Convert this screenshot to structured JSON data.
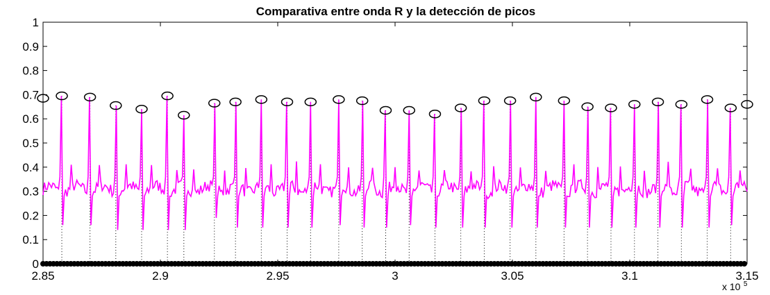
{
  "chart_data": {
    "type": "line",
    "title": "Comparativa entre onda R y la detección de picos",
    "xlabel": "",
    "ylabel": "",
    "x_exponent_label": "x 10",
    "x_exponent_power": "5",
    "xlim": [
      285000,
      315000
    ],
    "ylim": [
      0,
      1
    ],
    "x_ticks": [
      285000,
      290000,
      295000,
      300000,
      305000,
      310000,
      315000
    ],
    "x_tick_labels": [
      "2.85",
      "2.9",
      "2.95",
      "3",
      "3.05",
      "3.1",
      "3.15"
    ],
    "y_ticks": [
      0,
      0.1,
      0.2,
      0.3,
      0.4,
      0.5,
      0.6,
      0.7,
      0.8,
      0.9,
      1
    ],
    "y_tick_labels": [
      "0",
      "0.1",
      "0.2",
      "0.3",
      "0.4",
      "0.5",
      "0.6",
      "0.7",
      "0.8",
      "0.9",
      "1"
    ],
    "grid": false,
    "baseline": 0.31,
    "series": [
      {
        "color": "#ff00ff",
        "style": "signal",
        "peaks_x": [
          285800,
          287000,
          288100,
          289200,
          290300,
          291000,
          292300,
          293200,
          294300,
          295400,
          296400,
          297600,
          298600,
          299600,
          300600,
          301700,
          302800,
          303800,
          304900,
          306000,
          307200,
          308200,
          309200,
          310200,
          311200,
          312200,
          313300,
          314300
        ],
        "peaks_y": [
          0.695,
          0.69,
          0.655,
          0.64,
          0.695,
          0.615,
          0.665,
          0.67,
          0.68,
          0.67,
          0.67,
          0.68,
          0.675,
          0.635,
          0.635,
          0.62,
          0.645,
          0.675,
          0.675,
          0.69,
          0.675,
          0.65,
          0.645,
          0.66,
          0.67,
          0.66,
          0.68,
          0.645
        ],
        "trough_y": [
          0.16,
          0.16,
          0.14,
          0.14,
          0.14,
          0.14,
          0.19,
          0.15,
          0.15,
          0.15,
          0.15,
          0.16,
          0.15,
          0.15,
          0.16,
          0.15,
          0.15,
          0.15,
          0.15,
          0.15,
          0.15,
          0.15,
          0.15,
          0.15,
          0.15,
          0.15,
          0.15,
          0.16
        ]
      },
      {
        "color": "#000000",
        "style": "markers",
        "marker": "circle",
        "x": [
          285000,
          285800,
          287000,
          288100,
          289200,
          290300,
          291000,
          292300,
          293200,
          294300,
          295400,
          296400,
          297600,
          298600,
          299600,
          300600,
          301700,
          302800,
          303800,
          304900,
          306000,
          307200,
          308200,
          309200,
          310200,
          311200,
          312200,
          313300,
          314300,
          315000
        ],
        "y": [
          0.685,
          0.695,
          0.69,
          0.655,
          0.64,
          0.695,
          0.615,
          0.665,
          0.67,
          0.68,
          0.67,
          0.67,
          0.68,
          0.675,
          0.635,
          0.635,
          0.62,
          0.645,
          0.675,
          0.675,
          0.69,
          0.675,
          0.65,
          0.645,
          0.66,
          0.67,
          0.66,
          0.68,
          0.645,
          0.66
        ]
      }
    ]
  }
}
